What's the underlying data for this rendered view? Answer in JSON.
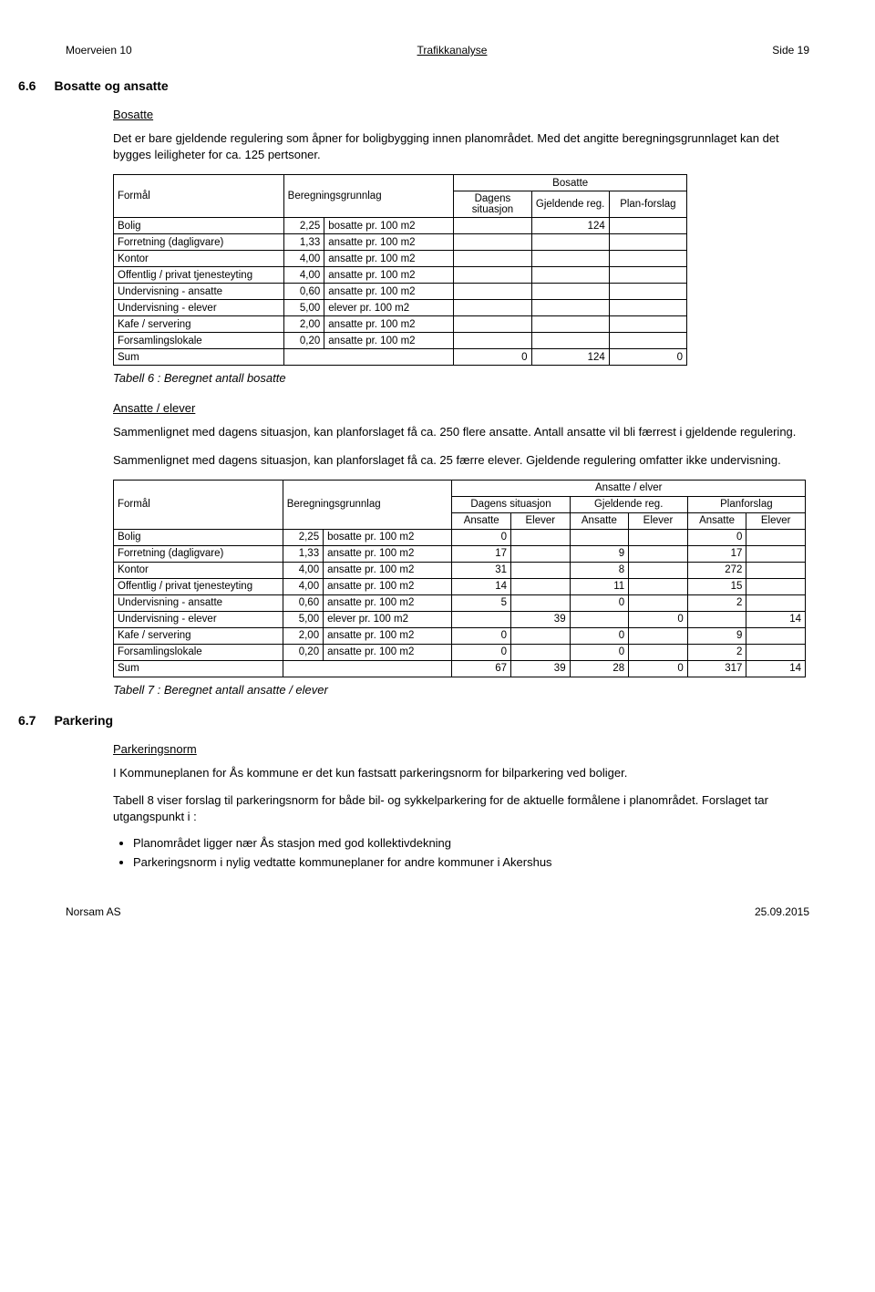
{
  "header": {
    "left": "Moerveien 10",
    "center": "Trafikkanalyse",
    "right": "Side 19"
  },
  "sec6_6": {
    "num": "6.6",
    "title": "Bosatte og ansatte",
    "sub1": "Bosatte",
    "p1": "Det er bare gjeldende regulering som åpner for boligbygging innen planområdet. Med det angitte beregningsgrunnlaget kan det bygges leiligheter for ca. 125 pertsoner.",
    "table6": {
      "h_formal": "Formål",
      "h_bg": "Beregningsgrunnlag",
      "h_bosatte": "Bosatte",
      "h_dagens": "Dagens situasjon",
      "h_gj": "Gjeldende reg.",
      "h_plan": "Plan-forslag",
      "rows": [
        {
          "f": "Bolig",
          "n": "2,25",
          "u": "bosatte pr. 100 m2",
          "d": "",
          "g": "124",
          "p": ""
        },
        {
          "f": "Forretning (dagligvare)",
          "n": "1,33",
          "u": "ansatte pr. 100 m2",
          "d": "",
          "g": "",
          "p": ""
        },
        {
          "f": "Kontor",
          "n": "4,00",
          "u": "ansatte pr. 100 m2",
          "d": "",
          "g": "",
          "p": ""
        },
        {
          "f": "Offentlig / privat tjenesteyting",
          "n": "4,00",
          "u": "ansatte pr. 100 m2",
          "d": "",
          "g": "",
          "p": ""
        },
        {
          "f": "Undervisning - ansatte",
          "n": "0,60",
          "u": "ansatte pr. 100 m2",
          "d": "",
          "g": "",
          "p": ""
        },
        {
          "f": "Undervisning -  elever",
          "n": "5,00",
          "u": "elever pr. 100 m2",
          "d": "",
          "g": "",
          "p": ""
        },
        {
          "f": "Kafe / servering",
          "n": "2,00",
          "u": "ansatte pr. 100 m2",
          "d": "",
          "g": "",
          "p": ""
        },
        {
          "f": "Forsamlingslokale",
          "n": "0,20",
          "u": "ansatte pr. 100 m2",
          "d": "",
          "g": "",
          "p": ""
        }
      ],
      "sum_label": "Sum",
      "sum": {
        "d": "0",
        "g": "124",
        "p": "0"
      }
    },
    "cap6": "Tabell 6 : Beregnet antall bosatte",
    "sub2": "Ansatte / elever",
    "p2": "Sammenlignet med dagens situasjon, kan planforslaget få ca. 250 flere ansatte. Antall ansatte vil bli færrest i gjeldende regulering.",
    "p3": "Sammenlignet med dagens situasjon, kan planforslaget få ca. 25 færre elever. Gjeldende regulering omfatter ikke undervisning.",
    "table7": {
      "h_formal": "Formål",
      "h_bg": "Beregningsgrunnlag",
      "h_ae": "Ansatte / elver",
      "h_dagens": "Dagens situasjon",
      "h_gj": "Gjeldende reg.",
      "h_plan": "Planforslag",
      "h_ans": "Ansatte",
      "h_el": "Elever",
      "rows": [
        {
          "f": "Bolig",
          "n": "2,25",
          "u": "bosatte pr. 100 m2",
          "da": "0",
          "de": "",
          "ga": "",
          "ge": "",
          "pa": "0",
          "pe": ""
        },
        {
          "f": "Forretning (dagligvare)",
          "n": "1,33",
          "u": "ansatte pr. 100 m2",
          "da": "17",
          "de": "",
          "ga": "9",
          "ge": "",
          "pa": "17",
          "pe": ""
        },
        {
          "f": "Kontor",
          "n": "4,00",
          "u": "ansatte pr. 100 m2",
          "da": "31",
          "de": "",
          "ga": "8",
          "ge": "",
          "pa": "272",
          "pe": ""
        },
        {
          "f": "Offentlig / privat tjenesteyting",
          "n": "4,00",
          "u": "ansatte pr. 100 m2",
          "da": "14",
          "de": "",
          "ga": "11",
          "ge": "",
          "pa": "15",
          "pe": ""
        },
        {
          "f": "Undervisning - ansatte",
          "n": "0,60",
          "u": "ansatte pr. 100 m2",
          "da": "5",
          "de": "",
          "ga": "0",
          "ge": "",
          "pa": "2",
          "pe": ""
        },
        {
          "f": "Undervisning -  elever",
          "n": "5,00",
          "u": "elever pr. 100 m2",
          "da": "",
          "de": "39",
          "ga": "",
          "ge": "0",
          "pa": "",
          "pe": "14"
        },
        {
          "f": "Kafe / servering",
          "n": "2,00",
          "u": "ansatte pr. 100 m2",
          "da": "0",
          "de": "",
          "ga": "0",
          "ge": "",
          "pa": "9",
          "pe": ""
        },
        {
          "f": "Forsamlingslokale",
          "n": "0,20",
          "u": "ansatte pr. 100 m2",
          "da": "0",
          "de": "",
          "ga": "0",
          "ge": "",
          "pa": "2",
          "pe": ""
        }
      ],
      "sum_label": "Sum",
      "sum": {
        "da": "67",
        "de": "39",
        "ga": "28",
        "ge": "0",
        "pa": "317",
        "pe": "14"
      }
    },
    "cap7": "Tabell 7 : Beregnet antall ansatte / elever"
  },
  "sec6_7": {
    "num": "6.7",
    "title": "Parkering",
    "sub": "Parkeringsnorm",
    "p1": "I Kommuneplanen for Ås kommune er det kun fastsatt parkeringsnorm for bilparkering ved boliger.",
    "p2": "Tabell 8 viser forslag til parkeringsnorm for både bil- og sykkelparkering for de aktuelle formålene i planområdet. Forslaget tar utgangspunkt i :",
    "bullets": [
      "Planområdet ligger nær Ås stasjon med god kollektivdekning",
      "Parkeringsnorm i nylig vedtatte kommuneplaner for andre kommuner i Akershus"
    ]
  },
  "footer": {
    "left": "Norsam AS",
    "right": "25.09.2015"
  }
}
